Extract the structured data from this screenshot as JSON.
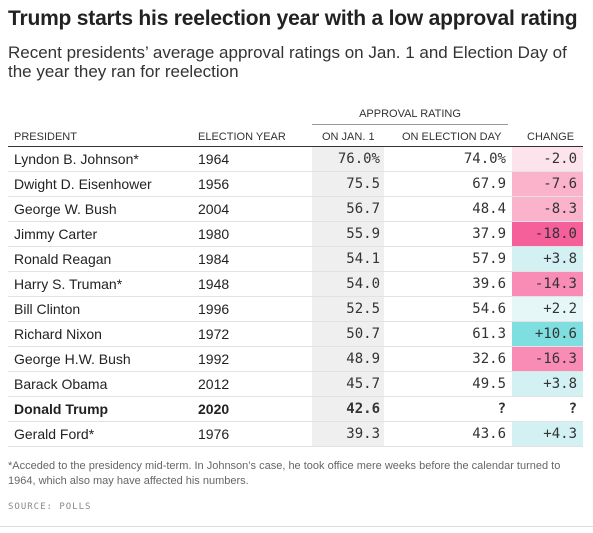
{
  "title": "Trump starts his reelection year with a low approval rating",
  "subtitle": "Recent presidents’ average approval ratings on Jan. 1 and Election Day of the year they ran for reelection",
  "group_header": "APPROVAL RATING",
  "headers": {
    "president": "PRESIDENT",
    "year": "ELECTION YEAR",
    "jan": "ON JAN. 1",
    "election": "ON ELECTION DAY",
    "change": "CHANGE"
  },
  "colors": {
    "neg_strong": "#f5609a",
    "neg_mid": "#f98cb4",
    "neg_light": "#fbb3cc",
    "neg_faint": "#fde4ec",
    "pos_strong": "#7fdee0",
    "pos_light": "#d3f1f3",
    "pos_faint": "#e6f7f8",
    "jan_col_bg": "#efefef"
  },
  "chart_data": {
    "type": "table",
    "columns": [
      "PRESIDENT",
      "ELECTION YEAR",
      "ON JAN. 1",
      "ON ELECTION DAY",
      "CHANGE"
    ],
    "rows": [
      {
        "president": "Lyndon B. Johnson*",
        "year": "1964",
        "jan": "76.0%",
        "election": "74.0%",
        "change": "-2.0",
        "tone": "neg_faint",
        "bold": false
      },
      {
        "president": "Dwight D. Eisenhower",
        "year": "1956",
        "jan": "75.5",
        "election": "67.9",
        "change": "-7.6",
        "tone": "neg_light",
        "bold": false
      },
      {
        "president": "George W. Bush",
        "year": "2004",
        "jan": "56.7",
        "election": "48.4",
        "change": "-8.3",
        "tone": "neg_light",
        "bold": false
      },
      {
        "president": "Jimmy Carter",
        "year": "1980",
        "jan": "55.9",
        "election": "37.9",
        "change": "-18.0",
        "tone": "neg_strong",
        "bold": false
      },
      {
        "president": "Ronald Reagan",
        "year": "1984",
        "jan": "54.1",
        "election": "57.9",
        "change": "+3.8",
        "tone": "pos_light",
        "bold": false
      },
      {
        "president": "Harry S. Truman*",
        "year": "1948",
        "jan": "54.0",
        "election": "39.6",
        "change": "-14.3",
        "tone": "neg_mid",
        "bold": false
      },
      {
        "president": "Bill Clinton",
        "year": "1996",
        "jan": "52.5",
        "election": "54.6",
        "change": "+2.2",
        "tone": "pos_faint",
        "bold": false
      },
      {
        "president": "Richard Nixon",
        "year": "1972",
        "jan": "50.7",
        "election": "61.3",
        "change": "+10.6",
        "tone": "pos_strong",
        "bold": false
      },
      {
        "president": "George H.W. Bush",
        "year": "1992",
        "jan": "48.9",
        "election": "32.6",
        "change": "-16.3",
        "tone": "neg_mid",
        "bold": false
      },
      {
        "president": "Barack Obama",
        "year": "2012",
        "jan": "45.7",
        "election": "49.5",
        "change": "+3.8",
        "tone": "pos_light",
        "bold": false
      },
      {
        "president": "Donald Trump",
        "year": "2020",
        "jan": "42.6",
        "election": "?",
        "change": "?",
        "tone": "none",
        "bold": true
      },
      {
        "president": "Gerald Ford*",
        "year": "1976",
        "jan": "39.3",
        "election": "43.6",
        "change": "+4.3",
        "tone": "pos_light",
        "bold": false
      }
    ]
  },
  "footnote": "*Acceded to the presidency mid-term. In Johnson’s case, he took office mere weeks before the calendar turned to 1964, which also may have affected his numbers.",
  "source": "SOURCE: POLLS"
}
